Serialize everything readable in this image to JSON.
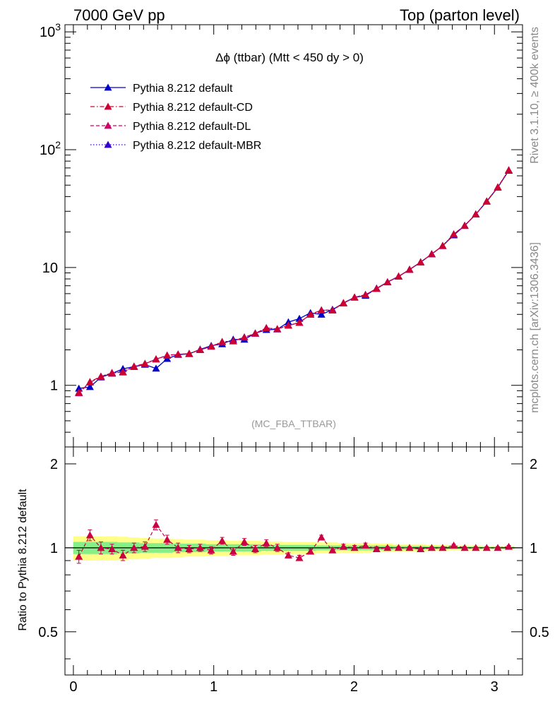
{
  "header": {
    "left": "7000 GeV pp",
    "right": "Top (parton level)"
  },
  "side_labels": {
    "rivet": "Rivet 3.1.10, ≥ 400k events",
    "mcplots": "mcplots.cern.ch [arXiv:1306.3436]"
  },
  "chart_data": {
    "type": "line",
    "title": "Δϕ (ttbar) (Mtt < 450 dy > 0)",
    "watermark": "(MC_FBA_TTBAR)",
    "ylabel_ratio": "Ratio to Pythia 8.212 default",
    "log_y": true,
    "xlim": [
      -0.06,
      3.2
    ],
    "ylim": [
      0.3,
      1150
    ],
    "ratio_ylim": [
      0.35,
      2.3
    ],
    "x_ticks": [
      "0",
      "1",
      "2",
      "3"
    ],
    "y_ticks": [
      "1",
      "10",
      "10^2",
      "10^3"
    ],
    "ratio_ticks": [
      "0.5",
      "1",
      "2"
    ],
    "legend_position": "top-left",
    "x": [
      0.039,
      0.118,
      0.196,
      0.275,
      0.353,
      0.432,
      0.51,
      0.589,
      0.668,
      0.746,
      0.825,
      0.903,
      0.982,
      1.06,
      1.139,
      1.218,
      1.296,
      1.375,
      1.453,
      1.532,
      1.61,
      1.689,
      1.767,
      1.846,
      1.924,
      2.003,
      2.081,
      2.16,
      2.238,
      2.317,
      2.395,
      2.474,
      2.553,
      2.631,
      2.71,
      2.788,
      2.867,
      2.945,
      3.024,
      3.102
    ],
    "series": [
      {
        "name": "Pythia 8.212 default",
        "color": "#0000cc",
        "dash": "solid",
        "values": [
          0.94,
          0.97,
          1.17,
          1.26,
          1.38,
          1.44,
          1.5,
          1.39,
          1.68,
          1.82,
          1.85,
          2.02,
          2.17,
          2.24,
          2.45,
          2.45,
          2.77,
          2.96,
          2.99,
          3.44,
          3.68,
          4.12,
          3.99,
          4.4,
          4.97,
          5.58,
          5.77,
          6.65,
          7.52,
          8.4,
          9.6,
          11.1,
          13.0,
          15.3,
          18.8,
          22.7,
          28.3,
          36.3,
          47.8,
          66.5
        ]
      },
      {
        "name": "Pythia 8.212 default-CD",
        "color": "#cc0033",
        "dash": "dashdot",
        "values": [
          0.87,
          1.07,
          1.19,
          1.27,
          1.3,
          1.44,
          1.52,
          1.67,
          1.79,
          1.83,
          1.86,
          2.0,
          2.14,
          2.34,
          2.37,
          2.56,
          2.75,
          3.07,
          3.0,
          3.23,
          3.4,
          4.0,
          4.34,
          4.33,
          5.0,
          5.58,
          5.88,
          6.61,
          7.52,
          8.4,
          9.6,
          11.1,
          13.0,
          15.3,
          19.2,
          22.7,
          28.3,
          36.5,
          48.0,
          67.0
        ]
      },
      {
        "name": "Pythia 8.212 default-DL",
        "color": "#cc0066",
        "dash": "dashed",
        "values": [
          0.86,
          1.06,
          1.18,
          1.28,
          1.29,
          1.45,
          1.53,
          1.66,
          1.8,
          1.84,
          1.85,
          2.01,
          2.13,
          2.33,
          2.38,
          2.55,
          2.76,
          3.06,
          3.01,
          3.22,
          3.41,
          3.99,
          4.35,
          4.34,
          5.01,
          5.59,
          5.87,
          6.62,
          7.5,
          8.41,
          9.61,
          11.05,
          13.05,
          15.25,
          19.1,
          22.6,
          28.4,
          36.4,
          48.1,
          66.9
        ]
      },
      {
        "name": "Pythia 8.212 default-MBR",
        "color": "#3300cc",
        "dash": "dotted",
        "values": [
          0.87,
          1.06,
          1.19,
          1.27,
          1.3,
          1.44,
          1.52,
          1.67,
          1.79,
          1.83,
          1.86,
          2.0,
          2.14,
          2.34,
          2.37,
          2.56,
          2.75,
          3.07,
          3.0,
          3.23,
          3.4,
          4.0,
          4.34,
          4.33,
          5.0,
          5.58,
          5.88,
          6.61,
          7.52,
          8.4,
          9.6,
          11.1,
          13.0,
          15.3,
          19.2,
          22.7,
          28.3,
          36.5,
          48.0,
          67.0
        ]
      }
    ],
    "ratio_series": [
      {
        "name": "Pythia 8.212 default-CD",
        "values": [
          0.93,
          1.11,
          1.0,
          0.99,
          0.94,
          1.0,
          1.01,
          1.21,
          1.07,
          1.0,
          0.99,
          1.0,
          0.98,
          1.06,
          0.97,
          1.05,
          0.99,
          1.04,
          1.0,
          0.94,
          0.92,
          0.97,
          1.09,
          0.98,
          1.01,
          1.0,
          1.02,
          0.99,
          1.0,
          1.0,
          1.0,
          0.99,
          1.0,
          1.0,
          1.02,
          1.0,
          1.0,
          1.0,
          1.0,
          1.01
        ],
        "errors": [
          0.05,
          0.05,
          0.05,
          0.04,
          0.04,
          0.04,
          0.04,
          0.05,
          0.04,
          0.04,
          0.03,
          0.03,
          0.03,
          0.03,
          0.03,
          0.03,
          0.03,
          0.03,
          0.03,
          0.02,
          0.02,
          0.02,
          0.02,
          0.02,
          0.02,
          0.02,
          0.02,
          0.02,
          0.01,
          0.01,
          0.01,
          0.01,
          0.01,
          0.01,
          0.01,
          0.01,
          0.01,
          0.01,
          0.01,
          0.01
        ]
      }
    ],
    "ratio_band_yellow_halfwidth": [
      0.1,
      0.1,
      0.1,
      0.1,
      0.095,
      0.09,
      0.085,
      0.08,
      0.08,
      0.075,
      0.07,
      0.07,
      0.065,
      0.065,
      0.06,
      0.06,
      0.06,
      0.055,
      0.055,
      0.05,
      0.05,
      0.05,
      0.045,
      0.045,
      0.04,
      0.04,
      0.04,
      0.035,
      0.035,
      0.03,
      0.03,
      0.03,
      0.025,
      0.025,
      0.02,
      0.02,
      0.02,
      0.015,
      0.015,
      0.015
    ],
    "ratio_band_green_halfwidth": [
      0.05,
      0.05,
      0.05,
      0.05,
      0.045,
      0.045,
      0.04,
      0.04,
      0.04,
      0.035,
      0.035,
      0.035,
      0.03,
      0.03,
      0.03,
      0.03,
      0.03,
      0.025,
      0.025,
      0.025,
      0.025,
      0.025,
      0.02,
      0.02,
      0.02,
      0.02,
      0.02,
      0.018,
      0.018,
      0.015,
      0.015,
      0.015,
      0.012,
      0.012,
      0.01,
      0.01,
      0.01,
      0.008,
      0.008,
      0.008
    ]
  }
}
